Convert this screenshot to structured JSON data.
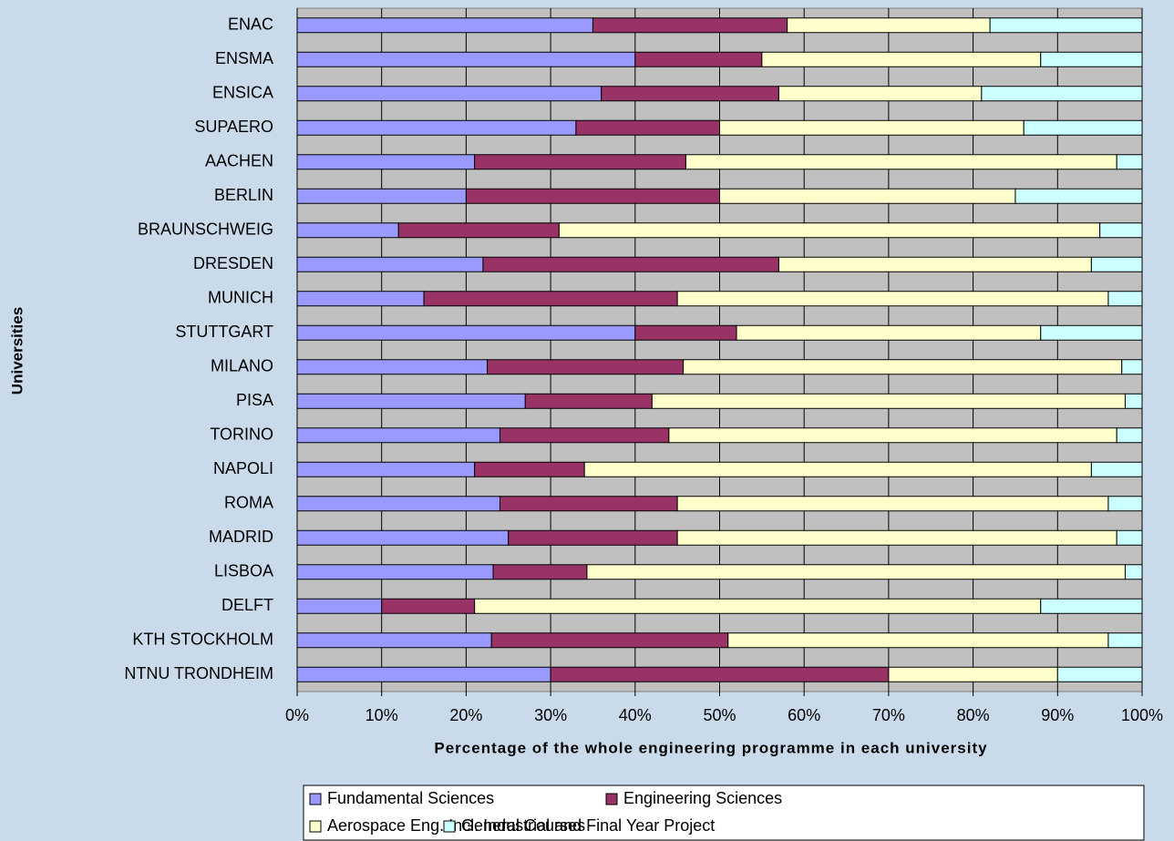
{
  "chart_data": {
    "type": "stacked-bar-horizontal",
    "x_label": "Percentage of the whole engineering programme in each university",
    "y_label": "Universities",
    "categories": [
      "ENAC",
      "ENSMA",
      "ENSICA",
      "SUPAERO",
      "AACHEN",
      "BERLIN",
      "BRAUNSCHWEIG",
      "DRESDEN",
      "MUNICH",
      "STUTTGART",
      "MILANO",
      "PISA",
      "TORINO",
      "NAPOLI",
      "ROMA",
      "MADRID",
      "LISBOA",
      "DELFT",
      "KTH STOCKHOLM",
      "NTNU TRONDHEIM"
    ],
    "series": [
      {
        "name": "Fundamental Sciences",
        "color": "#9999ff",
        "values": [
          35,
          40,
          36,
          33,
          21,
          20,
          12,
          22,
          15,
          40,
          22.5,
          27,
          24,
          21,
          24,
          25,
          23.2,
          10,
          23,
          30
        ]
      },
      {
        "name": "Engineering Sciences",
        "color": "#993366",
        "values": [
          23,
          15,
          21,
          17,
          25,
          30,
          19,
          35,
          30,
          12,
          23.2,
          15,
          20,
          13,
          21,
          20,
          11.1,
          11,
          28,
          40
        ]
      },
      {
        "name": "Aerospace Eng. Incl. Industrial and Final Year Project",
        "color": "#ffffcc",
        "values": [
          24,
          33,
          24,
          36,
          51,
          35,
          64,
          37,
          51,
          36,
          51.9,
          56,
          53,
          60,
          51,
          52,
          63.7,
          67,
          45,
          20
        ]
      },
      {
        "name": "General Courses",
        "color": "#ccffff",
        "values": [
          18,
          12,
          19,
          14,
          3,
          15,
          5,
          6,
          4,
          12,
          2.4,
          2,
          3,
          6,
          4,
          3,
          2,
          12,
          4,
          10
        ]
      }
    ],
    "xlim": [
      0,
      100
    ],
    "xticks": [
      {
        "value": 0,
        "label": "0%"
      },
      {
        "value": 10,
        "label": "10%"
      },
      {
        "value": 20,
        "label": "20%"
      },
      {
        "value": 30,
        "label": "30%"
      },
      {
        "value": 40,
        "label": "40%"
      },
      {
        "value": 50,
        "label": "50%"
      },
      {
        "value": 60,
        "label": "60%"
      },
      {
        "value": 70,
        "label": "70%"
      },
      {
        "value": 80,
        "label": "80%"
      },
      {
        "value": 90,
        "label": "90%"
      },
      {
        "value": 100,
        "label": "100%"
      }
    ],
    "grid": true,
    "legend": "bottom"
  }
}
